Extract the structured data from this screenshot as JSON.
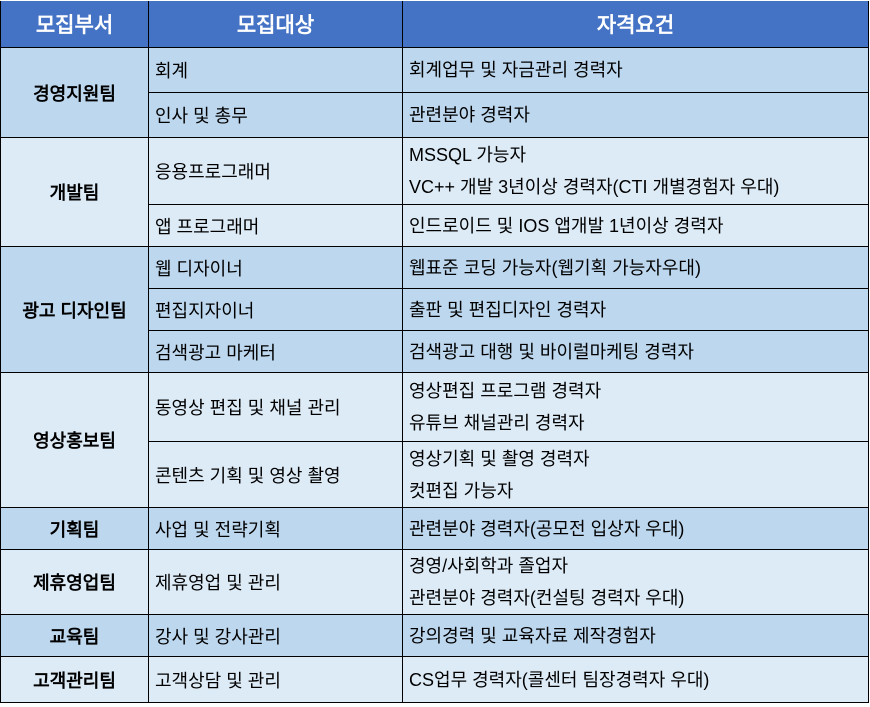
{
  "header": {
    "dept": "모집부서",
    "target": "모집대상",
    "requirement": "자격요건"
  },
  "colors": {
    "header": "#4472C4",
    "band_dark": "#BDD7EE",
    "band_light": "#DDEBF7"
  },
  "rows": [
    {
      "dept": "경영지원팀",
      "shade": "dark",
      "positions": [
        {
          "target": "회계",
          "requirements": [
            "회계업무 및 자금관리 경력자"
          ]
        },
        {
          "target": "인사 및 총무",
          "requirements": [
            "관련분야 경력자"
          ]
        }
      ]
    },
    {
      "dept": "개발팀",
      "shade": "light",
      "positions": [
        {
          "target": "응용프로그래머",
          "requirements": [
            "MSSQL 가능자",
            "VC++ 개발 3년이상 경력자(CTI 개별경험자 우대)"
          ]
        },
        {
          "target": "앱 프로그래머",
          "requirements": [
            "인드로이드 및 IOS 앱개발 1년이상 경력자"
          ]
        }
      ]
    },
    {
      "dept": "광고 디자인팀",
      "shade": "dark",
      "positions": [
        {
          "target": "웹 디자이너",
          "requirements": [
            "웹표준 코딩 가능자(웹기획 가능자우대)"
          ]
        },
        {
          "target": "편집지자이너",
          "requirements": [
            "출판 및 편집디자인 경력자"
          ]
        },
        {
          "target": "검색광고 마케터",
          "requirements": [
            "검색광고 대행 및 바이럴마케팅 경력자"
          ]
        }
      ]
    },
    {
      "dept": "영상홍보팀",
      "shade": "light",
      "positions": [
        {
          "target": "동영상 편집 및 채널 관리",
          "requirements": [
            "영상편집 프로그램 경력자",
            "유튜브 채널관리 경력자"
          ]
        },
        {
          "target": "콘텐츠 기획 및 영상 촬영",
          "requirements": [
            "영상기획 및 촬영 경력자",
            "컷편집 가능자"
          ]
        }
      ]
    },
    {
      "dept": "기획팀",
      "shade": "dark",
      "positions": [
        {
          "target": "사업 및 전략기획",
          "requirements": [
            "관련분야 경력자(공모전 입상자 우대)"
          ]
        }
      ]
    },
    {
      "dept": "제휴영업팀",
      "shade": "light",
      "positions": [
        {
          "target": "제휴영업 및 관리",
          "requirements": [
            "경영/사회학과 졸업자",
            "관련분야 경력자(컨설팅 경력자 우대)"
          ]
        }
      ]
    },
    {
      "dept": "교육팀",
      "shade": "dark",
      "positions": [
        {
          "target": "강사 및 강사관리",
          "requirements": [
            "강의경력 및 교육자료 제작경험자"
          ]
        }
      ]
    },
    {
      "dept": "고객관리팀",
      "shade": "light",
      "positions": [
        {
          "target": "고객상담 및 관리",
          "requirements": [
            "CS업무 경력자(콜센터 팀장경력자 우대)"
          ]
        }
      ]
    }
  ]
}
